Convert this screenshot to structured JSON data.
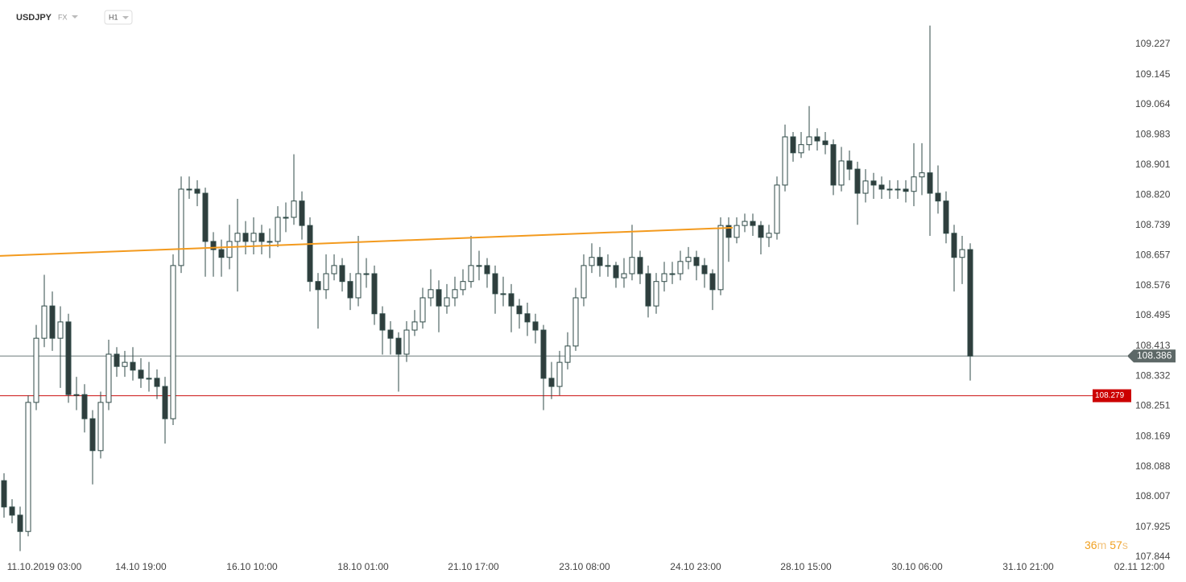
{
  "chart_data": {
    "type": "candlestick",
    "title": "USDJPY",
    "market": "FX",
    "interval": "H1",
    "up_color": "#ffffff",
    "down_color": "#2f3e3d",
    "outline_color": "#2f4a47",
    "open": [
      108.05,
      107.979,
      107.957,
      107.913,
      108.261,
      108.434,
      108.521,
      108.434,
      108.478,
      108.282,
      108.282,
      108.217,
      108.131,
      108.261,
      108.391,
      108.358,
      108.369,
      108.348,
      108.326,
      108.326,
      108.304,
      108.217,
      108.63,
      108.836,
      108.836,
      108.825,
      108.695,
      108.673,
      108.652,
      108.695,
      108.717,
      108.695,
      108.717,
      108.695,
      108.695,
      108.76,
      108.76,
      108.804,
      108.738,
      108.587,
      108.565,
      108.608,
      108.63,
      108.587,
      108.543,
      108.608,
      108.608,
      108.5,
      108.456,
      108.434,
      108.391,
      108.456,
      108.478,
      108.543,
      108.565,
      108.521,
      108.543,
      108.565,
      108.587,
      108.63,
      108.63,
      108.608,
      108.554,
      108.554,
      108.521,
      108.5,
      108.478,
      108.456,
      108.326,
      108.304,
      108.369,
      108.413,
      108.543,
      108.63,
      108.652,
      108.63,
      108.63,
      108.597,
      108.608,
      108.652,
      108.608,
      108.521,
      108.587,
      108.608,
      108.608,
      108.641,
      108.652,
      108.63,
      108.608,
      108.565,
      108.738,
      108.706,
      108.738,
      108.749,
      108.738,
      108.706,
      108.717,
      108.847,
      108.977,
      108.934,
      108.956,
      108.977,
      108.966,
      108.956,
      108.847,
      108.912,
      108.89,
      108.825,
      108.858,
      108.847,
      108.836,
      108.836,
      108.836,
      108.83,
      108.869,
      108.88,
      108.825,
      108.804,
      108.717,
      108.652,
      108.673
    ],
    "high": [
      108.07,
      108.0,
      107.98,
      108.28,
      108.47,
      108.605,
      108.56,
      108.52,
      108.5,
      108.33,
      108.31,
      108.24,
      108.29,
      108.43,
      108.41,
      108.4,
      108.41,
      108.38,
      108.37,
      108.35,
      108.33,
      108.66,
      108.87,
      108.87,
      108.86,
      108.84,
      108.72,
      108.7,
      108.74,
      108.81,
      108.75,
      108.76,
      108.74,
      108.73,
      108.79,
      108.8,
      108.93,
      108.83,
      108.76,
      108.61,
      108.66,
      108.66,
      108.65,
      108.61,
      108.71,
      108.65,
      108.63,
      108.52,
      108.48,
      108.45,
      108.48,
      108.51,
      108.57,
      108.62,
      108.59,
      108.58,
      108.6,
      108.62,
      108.71,
      108.67,
      108.65,
      108.63,
      108.6,
      108.58,
      108.54,
      108.53,
      108.5,
      108.47,
      108.37,
      108.4,
      108.45,
      108.57,
      108.66,
      108.69,
      108.68,
      108.66,
      108.64,
      108.65,
      108.74,
      108.67,
      108.63,
      108.61,
      108.64,
      108.64,
      108.67,
      108.68,
      108.67,
      108.65,
      108.62,
      108.76,
      108.76,
      108.76,
      108.77,
      108.77,
      108.75,
      108.74,
      108.87,
      109.01,
      108.99,
      108.99,
      109.06,
      109.0,
      108.99,
      108.97,
      108.95,
      108.94,
      108.91,
      108.89,
      108.88,
      108.87,
      108.86,
      108.86,
      108.86,
      108.96,
      108.96,
      109.277,
      108.9,
      108.83,
      108.74,
      108.71,
      108.69
    ],
    "low": [
      107.95,
      107.935,
      107.86,
      107.9,
      108.24,
      108.41,
      108.4,
      108.3,
      108.26,
      108.24,
      108.18,
      108.04,
      108.11,
      108.24,
      108.33,
      108.33,
      108.32,
      108.3,
      108.29,
      108.27,
      108.15,
      108.2,
      108.61,
      108.81,
      108.79,
      108.6,
      108.6,
      108.6,
      108.62,
      108.56,
      108.66,
      108.66,
      108.66,
      108.65,
      108.68,
      108.72,
      108.74,
      108.7,
      108.56,
      108.46,
      108.54,
      108.59,
      108.56,
      108.51,
      108.52,
      108.57,
      108.47,
      108.39,
      108.39,
      108.29,
      108.37,
      108.44,
      108.46,
      108.52,
      108.45,
      108.5,
      108.52,
      108.55,
      108.57,
      108.59,
      108.57,
      108.5,
      108.52,
      108.45,
      108.46,
      108.44,
      108.42,
      108.24,
      108.27,
      108.28,
      108.35,
      108.4,
      108.52,
      108.61,
      108.6,
      108.6,
      108.57,
      108.57,
      108.59,
      108.58,
      108.49,
      108.5,
      108.56,
      108.58,
      108.59,
      108.62,
      108.59,
      108.57,
      108.51,
      108.55,
      108.64,
      108.69,
      108.72,
      108.71,
      108.66,
      108.68,
      108.7,
      108.83,
      108.91,
      108.92,
      108.94,
      108.94,
      108.93,
      108.82,
      108.83,
      108.86,
      108.74,
      108.8,
      108.81,
      108.81,
      108.81,
      108.81,
      108.8,
      108.79,
      108.82,
      108.71,
      108.77,
      108.69,
      108.56,
      108.58,
      108.32
    ],
    "close": [
      107.979,
      107.957,
      107.913,
      108.261,
      108.434,
      108.521,
      108.434,
      108.478,
      108.282,
      108.282,
      108.217,
      108.131,
      108.261,
      108.391,
      108.358,
      108.369,
      108.348,
      108.326,
      108.326,
      108.304,
      108.217,
      108.63,
      108.836,
      108.836,
      108.825,
      108.695,
      108.673,
      108.652,
      108.695,
      108.717,
      108.695,
      108.717,
      108.695,
      108.695,
      108.76,
      108.76,
      108.804,
      108.738,
      108.587,
      108.565,
      108.608,
      108.63,
      108.587,
      108.543,
      108.608,
      108.608,
      108.5,
      108.456,
      108.434,
      108.391,
      108.456,
      108.478,
      108.543,
      108.565,
      108.521,
      108.543,
      108.565,
      108.587,
      108.63,
      108.63,
      108.608,
      108.554,
      108.554,
      108.521,
      108.5,
      108.478,
      108.456,
      108.326,
      108.304,
      108.369,
      108.413,
      108.543,
      108.63,
      108.652,
      108.63,
      108.63,
      108.597,
      108.608,
      108.652,
      108.608,
      108.521,
      108.587,
      108.608,
      108.608,
      108.641,
      108.652,
      108.63,
      108.608,
      108.565,
      108.738,
      108.706,
      108.738,
      108.749,
      108.738,
      108.706,
      108.717,
      108.847,
      108.977,
      108.934,
      108.956,
      108.977,
      108.966,
      108.956,
      108.847,
      108.912,
      108.89,
      108.825,
      108.858,
      108.847,
      108.836,
      108.836,
      108.836,
      108.83,
      108.869,
      108.88,
      108.825,
      108.804,
      108.717,
      108.652,
      108.673,
      108.386
    ],
    "xlim": [
      -0.5,
      146.8
    ],
    "xticks": [
      {
        "value": 5,
        "label": "11.10.2019 03:00"
      },
      {
        "value": 17,
        "label": "14.10 19:00"
      },
      {
        "value": 30.8,
        "label": "16.10 10:00"
      },
      {
        "value": 44.6,
        "label": "18.10 01:00"
      },
      {
        "value": 58.3,
        "label": "21.10 17:00"
      },
      {
        "value": 72.1,
        "label": "23.10 08:00"
      },
      {
        "value": 85.9,
        "label": "24.10 23:00"
      },
      {
        "value": 99.6,
        "label": "28.10 15:00"
      },
      {
        "value": 113.4,
        "label": "30.10 06:00"
      },
      {
        "value": 127.2,
        "label": "31.10 21:00"
      },
      {
        "value": 141,
        "label": "02.11 12:00"
      }
    ],
    "ylim": [
      107.844,
      109.346
    ],
    "yticks": [
      109.227,
      109.145,
      109.064,
      108.983,
      108.901,
      {
        "value": 108.82,
        "label": "108.820"
      },
      108.739,
      108.657,
      108.576,
      108.495,
      108.413,
      108.332,
      108.251,
      108.169,
      108.088,
      108.007,
      107.925,
      107.844
    ],
    "grid": false,
    "price_lines": [
      {
        "value": 108.386,
        "color": "#6f7b7a",
        "label_color": "#5d6867"
      },
      {
        "value": 108.279,
        "color": "#cc1111",
        "label_color": "#cc0000"
      }
    ],
    "trendline": {
      "x": [
        -0.5,
        90.5
      ],
      "y": [
        108.656,
        108.732
      ],
      "color": "#f39a1e"
    },
    "countdown": [
      "36",
      "m",
      "57",
      "s"
    ]
  }
}
